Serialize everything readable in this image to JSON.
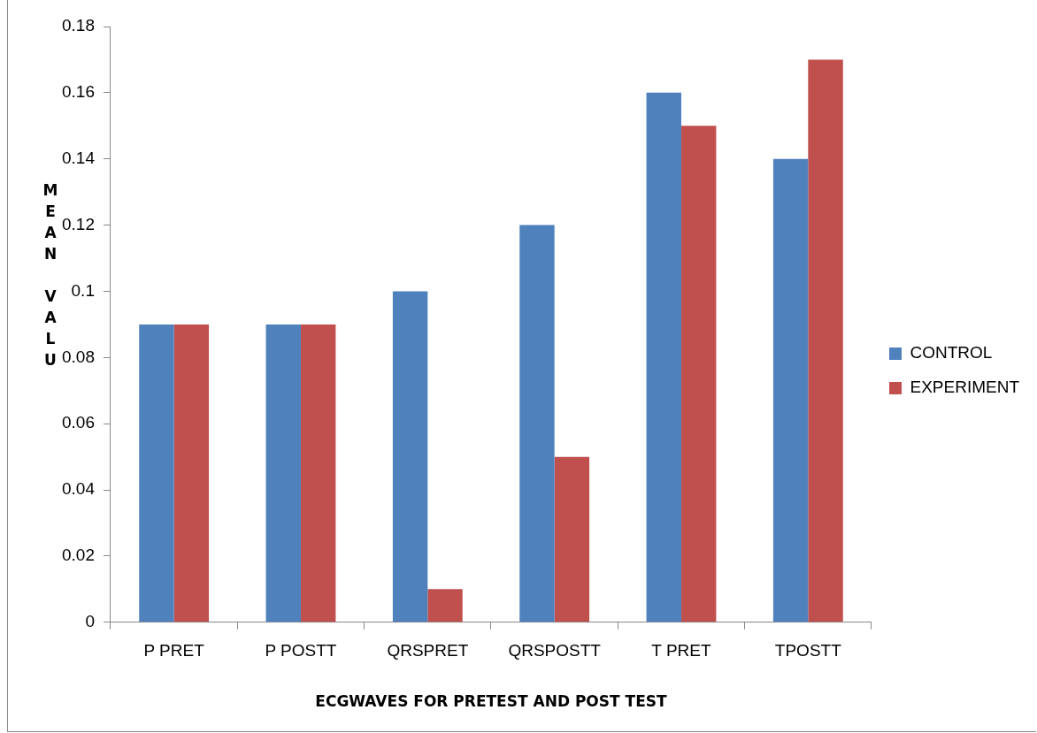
{
  "chart_data": {
    "type": "bar",
    "xlabel": "ECGWAVES FOR PRETEST AND POST TEST",
    "ylabel": "MEAN VALU",
    "categories": [
      "P PRET",
      "P POSTT",
      "QRSPRET",
      "QRSPOSTT",
      "T PRET",
      "TPOSTT"
    ],
    "series": [
      {
        "name": "CONTROL",
        "color": "#4f81bd",
        "values": [
          0.09,
          0.09,
          0.1,
          0.12,
          0.16,
          0.14
        ]
      },
      {
        "name": "EXPERIMENT",
        "color": "#c0504d",
        "values": [
          0.09,
          0.09,
          0.01,
          0.05,
          0.15,
          0.17
        ]
      }
    ],
    "ylim": [
      0,
      0.18
    ],
    "yticks": [
      0,
      0.02,
      0.04,
      0.06,
      0.08,
      0.1,
      0.12,
      0.14,
      0.16,
      0.18
    ],
    "grid": false,
    "legend": "right"
  }
}
